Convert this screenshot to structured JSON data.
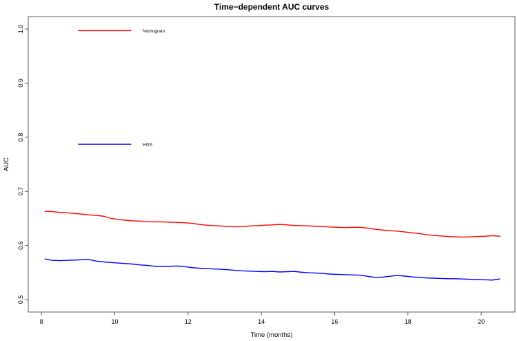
{
  "chart_data": {
    "type": "line",
    "title": "Time−dependent AUC curves",
    "xlabel": "Time (months)",
    "ylabel": "AUC",
    "xlim": [
      7.64,
      20.92
    ],
    "ylim": [
      0.477,
      1.023
    ],
    "grid": false,
    "background": "#ffffff",
    "axis_color": "#595959",
    "x_ticks": [
      {
        "v": 8,
        "label": "8"
      },
      {
        "v": 10,
        "label": "10"
      },
      {
        "v": 12,
        "label": "12"
      },
      {
        "v": 14,
        "label": "14"
      },
      {
        "v": 16,
        "label": "16"
      },
      {
        "v": 18,
        "label": "18"
      },
      {
        "v": 20,
        "label": "20"
      }
    ],
    "y_ticks": [
      {
        "v": 0.5,
        "label": "0.5"
      },
      {
        "v": 0.6,
        "label": "0.6"
      },
      {
        "v": 0.7,
        "label": "0.7"
      },
      {
        "v": 0.8,
        "label": "0.8"
      },
      {
        "v": 0.9,
        "label": "0.9"
      },
      {
        "v": 1.0,
        "label": "1.0"
      }
    ],
    "x": [
      8.1,
      8.3,
      8.5,
      8.7,
      8.9,
      9.1,
      9.3,
      9.5,
      9.7,
      9.9,
      10.1,
      10.3,
      10.5,
      10.7,
      10.9,
      11.1,
      11.3,
      11.5,
      11.7,
      11.9,
      12.1,
      12.3,
      12.5,
      12.7,
      12.9,
      13.1,
      13.3,
      13.5,
      13.7,
      13.9,
      14.1,
      14.3,
      14.5,
      14.7,
      14.9,
      15.1,
      15.3,
      15.5,
      15.7,
      15.9,
      16.1,
      16.3,
      16.5,
      16.7,
      16.9,
      17.1,
      17.3,
      17.5,
      17.7,
      17.9,
      18.1,
      18.3,
      18.5,
      18.7,
      18.9,
      19.1,
      19.3,
      19.5,
      19.7,
      19.9,
      20.1,
      20.3,
      20.5
    ],
    "series": [
      {
        "name": "Nomogram",
        "color": "#ff0000",
        "values": [
          0.663,
          0.6625,
          0.661,
          0.6605,
          0.659,
          0.658,
          0.6565,
          0.6555,
          0.654,
          0.65,
          0.648,
          0.6465,
          0.6455,
          0.645,
          0.644,
          0.6435,
          0.6435,
          0.643,
          0.6425,
          0.642,
          0.641,
          0.639,
          0.6375,
          0.6365,
          0.636,
          0.635,
          0.6345,
          0.635,
          0.636,
          0.6365,
          0.6375,
          0.638,
          0.639,
          0.638,
          0.637,
          0.6365,
          0.636,
          0.6355,
          0.635,
          0.634,
          0.6335,
          0.633,
          0.6335,
          0.6335,
          0.632,
          0.63,
          0.6285,
          0.6275,
          0.6265,
          0.625,
          0.6235,
          0.622,
          0.62,
          0.6185,
          0.6175,
          0.6165,
          0.616,
          0.6155,
          0.616,
          0.6165,
          0.617,
          0.618,
          0.617
        ]
      },
      {
        "name": "HGS",
        "color": "#0000ff",
        "values": [
          0.575,
          0.5725,
          0.572,
          0.5725,
          0.573,
          0.5735,
          0.574,
          0.571,
          0.5695,
          0.5685,
          0.5675,
          0.5665,
          0.5655,
          0.564,
          0.563,
          0.5615,
          0.561,
          0.5615,
          0.562,
          0.561,
          0.559,
          0.558,
          0.5575,
          0.5565,
          0.556,
          0.555,
          0.554,
          0.553,
          0.5525,
          0.552,
          0.5515,
          0.552,
          0.551,
          0.5515,
          0.552,
          0.5505,
          0.5495,
          0.549,
          0.548,
          0.547,
          0.5465,
          0.546,
          0.5455,
          0.545,
          0.543,
          0.541,
          0.5415,
          0.543,
          0.5445,
          0.5435,
          0.542,
          0.541,
          0.54,
          0.5395,
          0.539,
          0.5385,
          0.5385,
          0.538,
          0.5375,
          0.537,
          0.5365,
          0.536,
          0.538
        ]
      }
    ],
    "legend": [
      {
        "label": "Nomogram",
        "color": "#ff0000",
        "x1": 9.0,
        "x2": 10.45,
        "text_x": 10.77,
        "y": 0.997
      },
      {
        "label": "HGS",
        "color": "#0000ff",
        "x1": 9.0,
        "x2": 10.45,
        "text_x": 10.77,
        "y": 0.787
      }
    ]
  }
}
